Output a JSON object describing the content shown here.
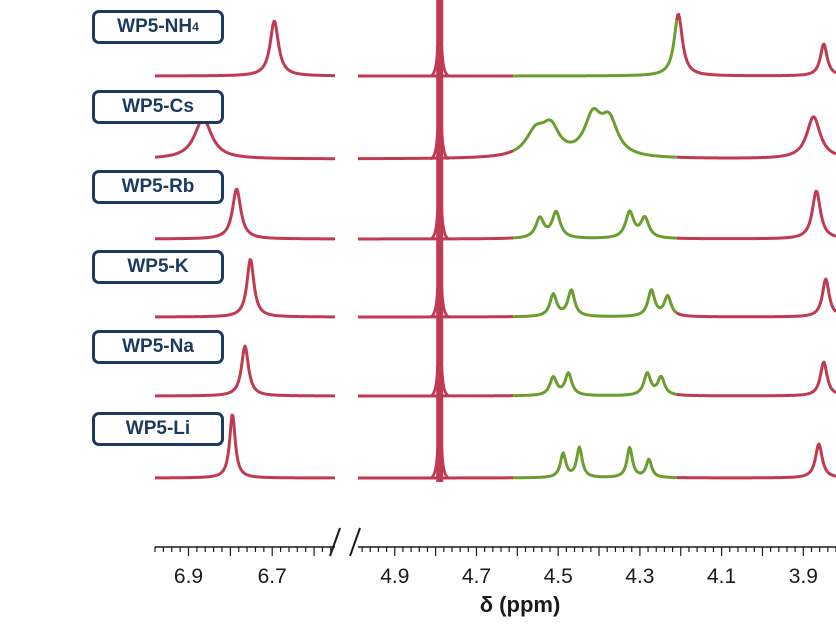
{
  "chart_data": {
    "type": "line",
    "xlabel": "δ (ppm)",
    "x_axis_reversed": true,
    "axis_break_between": [
      6.7,
      4.9
    ],
    "segments": [
      {
        "name": "left",
        "xlim": [
          6.98,
          6.55
        ]
      },
      {
        "name": "right",
        "xlim": [
          4.99,
          3.82
        ]
      }
    ],
    "ticks": {
      "left": [
        {
          "value": 6.9,
          "label": "6.9"
        },
        {
          "value": 6.7,
          "label": "6.7"
        }
      ],
      "right": [
        {
          "value": 4.9,
          "label": "4.9"
        },
        {
          "value": 4.7,
          "label": "4.7"
        },
        {
          "value": 4.5,
          "label": "4.5"
        },
        {
          "value": 4.3,
          "label": "4.3"
        },
        {
          "value": 4.1,
          "label": "4.1"
        },
        {
          "value": 3.9,
          "label": "3.9"
        }
      ]
    },
    "colors": {
      "baseline": "#c03a52",
      "highlight": "#6a9e2f",
      "label": "#1c3a5e"
    },
    "highlight_region_ppm": [
      4.61,
      4.21
    ],
    "solvent_peak_ppm": 4.79,
    "spectra": [
      {
        "label": "WP5-NH",
        "label_sub": "4",
        "peaks": [
          [
            6.695,
            0.55,
            0.012
          ],
          [
            4.206,
            0.62,
            0.012
          ],
          [
            3.85,
            0.32,
            0.01
          ]
        ]
      },
      {
        "label": "WP5-Cs",
        "peaks": [
          [
            6.865,
            0.4,
            0.025
          ],
          [
            4.555,
            0.24,
            0.03
          ],
          [
            4.518,
            0.26,
            0.025
          ],
          [
            4.415,
            0.38,
            0.025
          ],
          [
            4.375,
            0.34,
            0.025
          ],
          [
            3.875,
            0.42,
            0.02
          ]
        ]
      },
      {
        "label": "WP5-Rb",
        "peaks": [
          [
            6.785,
            0.5,
            0.012
          ],
          [
            4.545,
            0.2,
            0.012
          ],
          [
            4.505,
            0.26,
            0.012
          ],
          [
            4.325,
            0.26,
            0.012
          ],
          [
            4.288,
            0.2,
            0.012
          ],
          [
            3.868,
            0.48,
            0.012
          ]
        ]
      },
      {
        "label": "WP5-K",
        "peaks": [
          [
            6.752,
            0.58,
            0.01
          ],
          [
            4.512,
            0.22,
            0.01
          ],
          [
            4.468,
            0.26,
            0.01
          ],
          [
            4.272,
            0.26,
            0.01
          ],
          [
            4.232,
            0.2,
            0.01
          ],
          [
            3.845,
            0.38,
            0.01
          ]
        ]
      },
      {
        "label": "WP5-Na",
        "peaks": [
          [
            6.765,
            0.5,
            0.01
          ],
          [
            4.512,
            0.18,
            0.01
          ],
          [
            4.475,
            0.22,
            0.01
          ],
          [
            4.282,
            0.22,
            0.01
          ],
          [
            4.248,
            0.18,
            0.01
          ],
          [
            3.85,
            0.34,
            0.01
          ]
        ]
      },
      {
        "label": "WP5-Li",
        "peaks": [
          [
            6.795,
            0.64,
            0.008
          ],
          [
            4.488,
            0.24,
            0.008
          ],
          [
            4.448,
            0.3,
            0.008
          ],
          [
            4.325,
            0.3,
            0.008
          ],
          [
            4.278,
            0.18,
            0.008
          ],
          [
            3.862,
            0.34,
            0.01
          ]
        ]
      }
    ]
  }
}
